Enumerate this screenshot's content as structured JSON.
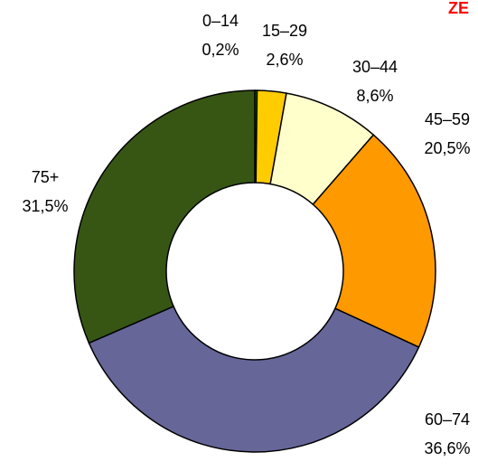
{
  "chart_data": {
    "type": "donut",
    "title": "ZE",
    "categories": [
      "0–14",
      "15–29",
      "30–44",
      "45–59",
      "60–74",
      "75+"
    ],
    "values": [
      0.2,
      2.6,
      8.6,
      20.5,
      36.6,
      31.5
    ],
    "value_labels": [
      "0,2%",
      "2,6%",
      "8,6%",
      "20,5%",
      "36,6%",
      "31,5%"
    ],
    "colors": [
      "#2f7d1e",
      "#ffcc00",
      "#ffffcc",
      "#ff9900",
      "#666699",
      "#375614"
    ]
  }
}
